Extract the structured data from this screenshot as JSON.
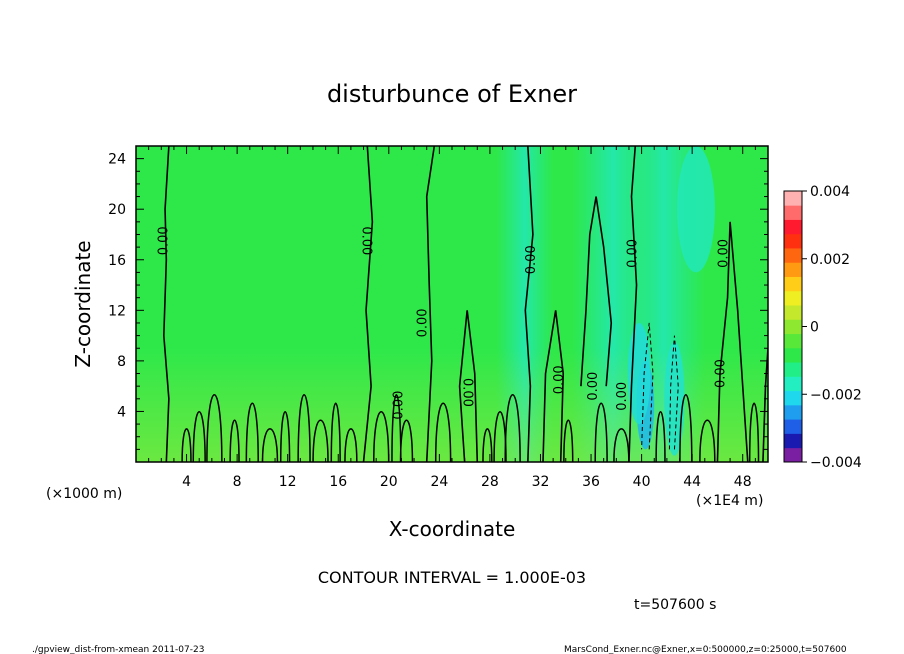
{
  "chart_data": {
    "type": "heatmap",
    "title": "disturbunce of Exner",
    "xlabel": "X-coordinate",
    "ylabel": "Z-coordinate",
    "x_unit_label": "(×1000 m)",
    "x_unit_label_right": "(×1E4 m)",
    "xlim": [
      0,
      50
    ],
    "ylim": [
      0,
      25
    ],
    "x_ticks": [
      "4",
      "8",
      "12",
      "16",
      "20",
      "24",
      "28",
      "32",
      "36",
      "40",
      "44",
      "48"
    ],
    "y_ticks": [
      "4",
      "8",
      "12",
      "16",
      "20",
      "24"
    ],
    "colorbar": {
      "range": [
        -0.004,
        0.004
      ],
      "tick_labels": [
        "0.004",
        "0.002",
        "0",
        "−0.002",
        "−0.004"
      ],
      "colors": [
        "#7a1fa2",
        "#1a1ab0",
        "#1f5ee6",
        "#1f9ef0",
        "#1fd8ee",
        "#22eec2",
        "#22ee88",
        "#2ee84a",
        "#58e83a",
        "#8ee830",
        "#c4e82c",
        "#eeee22",
        "#ffcc18",
        "#ff9a12",
        "#ff6610",
        "#ff3010",
        "#ff1a30",
        "#ff6a6a",
        "#ffb0b0"
      ]
    },
    "contour_labels": [
      {
        "text": "0.00",
        "x": 2.2,
        "y": 17.5,
        "rot": -90
      },
      {
        "text": "0.00",
        "x": 18.2,
        "y": 17.5,
        "rot": 90
      },
      {
        "text": "0.00",
        "x": 31.3,
        "y": 16,
        "rot": -90
      },
      {
        "text": "0.00",
        "x": 39.3,
        "y": 16.5,
        "rot": -90
      },
      {
        "text": "0.00",
        "x": 46.5,
        "y": 16.5,
        "rot": -90
      },
      {
        "text": "0.00",
        "x": 22.7,
        "y": 11,
        "rot": -90
      },
      {
        "text": "0.00",
        "x": 26.2,
        "y": 5.5,
        "rot": 90
      },
      {
        "text": "0.00",
        "x": 20.8,
        "y": 4.5,
        "rot": -90
      },
      {
        "text": "0.00",
        "x": 33.5,
        "y": 6.5,
        "rot": -90
      },
      {
        "text": "0.00",
        "x": 36.2,
        "y": 6,
        "rot": -90
      },
      {
        "text": "0.00",
        "x": 38.5,
        "y": 5.2,
        "rot": -90
      },
      {
        "text": "0.00",
        "x": 46.3,
        "y": 7,
        "rot": -90
      }
    ],
    "contour_interval_text": "CONTOUR INTERVAL = 1.000E-03",
    "time_text": "t=507600 s"
  },
  "footer": {
    "left": "./gpview_dist-from-xmean  2011-07-23",
    "right": "MarsCond_Exner.nc@Exner,x=0:500000,z=0:25000,t=507600"
  }
}
